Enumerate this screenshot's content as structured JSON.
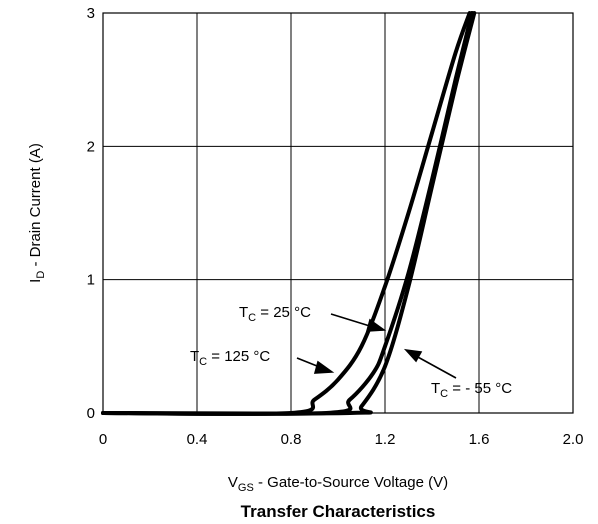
{
  "chart_data": {
    "type": "line",
    "title": "Transfer Characteristics",
    "xlabel": {
      "main": "V",
      "sub": "GS",
      "rest": " - Gate-to-Source Voltage (V)"
    },
    "ylabel": {
      "main": "I",
      "sub": "D",
      "rest": " - Drain Current (A)"
    },
    "xlim": [
      0,
      2.0
    ],
    "ylim": [
      0,
      3
    ],
    "xticks": [
      0,
      0.4,
      0.8,
      1.2,
      1.6,
      2.0
    ],
    "xtick_labels": [
      "0",
      "0.4",
      "0.8",
      "1.2",
      "1.6",
      "2.0"
    ],
    "yticks": [
      0,
      1,
      2,
      3
    ],
    "ytick_labels": [
      "0",
      "1",
      "2",
      "3"
    ],
    "grid": true,
    "series": [
      {
        "name": "TC = 125 °C",
        "x": [
          0,
          0.8,
          0.9,
          1.0,
          1.1,
          1.2,
          1.3,
          1.4,
          1.5,
          1.56
        ],
        "y": [
          0,
          0,
          0.1,
          0.25,
          0.5,
          0.95,
          1.5,
          2.1,
          2.7,
          3.0
        ]
      },
      {
        "name": "TC = 25 °C",
        "x": [
          0,
          0.95,
          1.05,
          1.15,
          1.2,
          1.3,
          1.4,
          1.5,
          1.57
        ],
        "y": [
          0,
          0,
          0.1,
          0.3,
          0.5,
          1.05,
          1.75,
          2.5,
          3.0
        ]
      },
      {
        "name": "TC = - 55 °C",
        "x": [
          0,
          1.05,
          1.1,
          1.2,
          1.3,
          1.4,
          1.5,
          1.58
        ],
        "y": [
          0,
          0,
          0.05,
          0.35,
          0.95,
          1.7,
          2.45,
          3.0
        ]
      }
    ],
    "annotations": [
      {
        "main": "T",
        "sub": "C",
        "rest": " = 25 °C"
      },
      {
        "main": "T",
        "sub": "C",
        "rest": " = 125 °C"
      },
      {
        "main": "T",
        "sub": "C",
        "rest": " = - 55 °C"
      }
    ]
  }
}
